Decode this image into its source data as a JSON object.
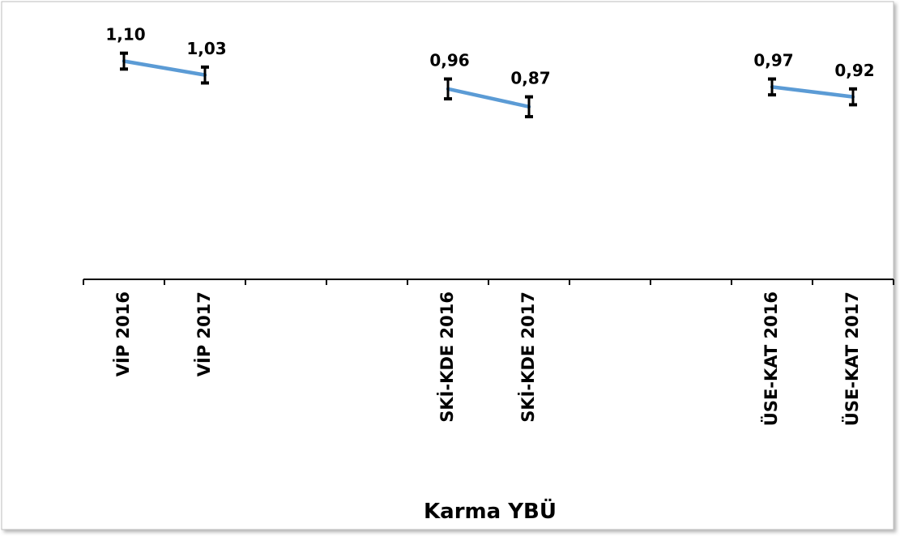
{
  "chart_data": {
    "type": "line",
    "x_label": "Karma YBÜ",
    "categories": [
      "VİP 2016",
      "VİP 2017",
      null,
      null,
      "SKİ-KDE 2016",
      "SKİ-KDE 2017",
      null,
      null,
      "ÜSE-KAT 2016",
      "ÜSE-KAT 2017"
    ],
    "series": [
      {
        "color": "#5b9bd5",
        "values": [
          1.1,
          1.03,
          null,
          null,
          0.96,
          0.87,
          null,
          null,
          0.97,
          0.92
        ],
        "value_labels": [
          "1,10",
          "1,03",
          null,
          null,
          "0,96",
          "0,87",
          null,
          null,
          "0,97",
          "0,92"
        ],
        "errors": [
          0.04,
          0.04,
          null,
          null,
          0.05,
          0.05,
          null,
          null,
          0.04,
          0.04
        ]
      }
    ],
    "ylim": [
      0,
      1.3
    ]
  }
}
